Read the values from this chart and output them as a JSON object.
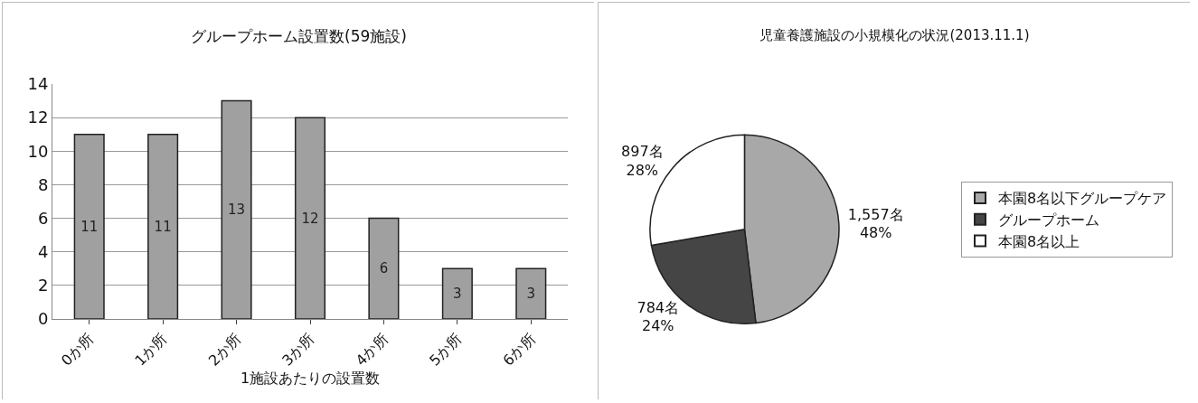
{
  "chart_data": [
    {
      "type": "bar",
      "title": "グループホーム設置数(59施設)",
      "xlabel": "1施設あたりの設置数",
      "categories": [
        "0か所",
        "1か所",
        "2か所",
        "3か所",
        "4か所",
        "5か所",
        "6か所"
      ],
      "values": [
        11,
        11,
        13,
        12,
        6,
        3,
        3
      ],
      "color": "#a0a0a0",
      "ylim": [
        0,
        14
      ],
      "yticks": [
        0,
        2,
        4,
        6,
        8,
        10,
        12,
        14
      ],
      "grid": "y",
      "data_labels": true
    },
    {
      "type": "pie",
      "title": "児童養護施設の小規模化の状況(2013.11.1)",
      "categories": [
        "本園8名以下グループケア",
        "グループホーム",
        "本園8名以上"
      ],
      "values": [
        1557,
        784,
        897
      ],
      "colors": [
        "#a8a8a8",
        "#454545",
        "#ffffff"
      ],
      "value_labels": [
        "1,557名\n48%",
        "784名\n24%",
        "897名\n28%"
      ],
      "legend": "right"
    }
  ]
}
